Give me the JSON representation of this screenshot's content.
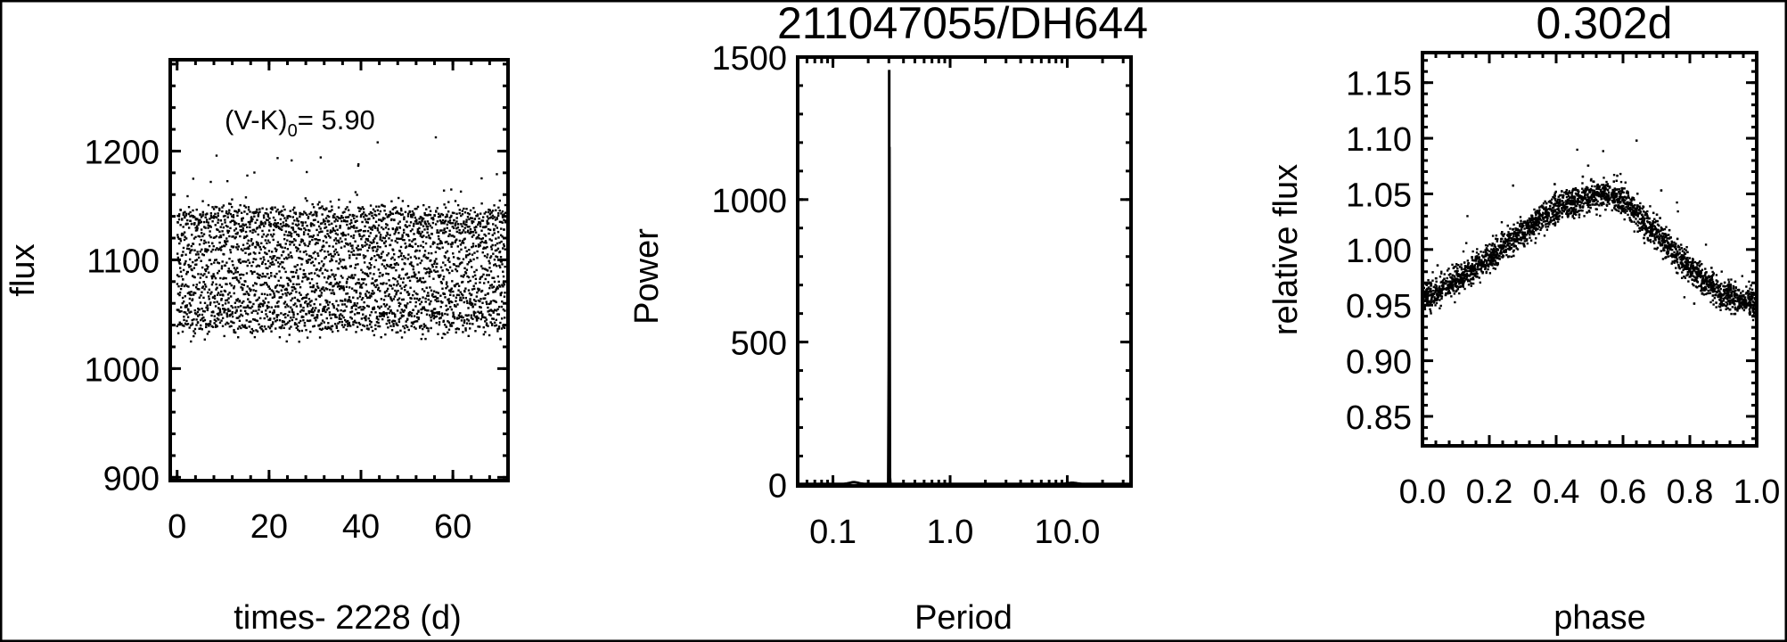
{
  "chart_data": [
    {
      "type": "scatter",
      "title": "",
      "xlabel": "times- 2228 (d)",
      "ylabel": "flux",
      "xlim": [
        -1.5,
        72
      ],
      "ylim": [
        897,
        1284
      ],
      "xticks": [
        0,
        20,
        40,
        60
      ],
      "xtick_labels": [
        "0",
        "20",
        "40",
        "60"
      ],
      "yticks": [
        900,
        1000,
        1100,
        1200
      ],
      "ytick_labels": [
        "900",
        "1000",
        "1100",
        "1200"
      ],
      "annotation": {
        "prefix": "(V-K)",
        "subscript": "0",
        "suffix": "= 5.90"
      },
      "time_range": [
        0,
        71.5
      ],
      "mean_flux": 1090,
      "band": [
        1040,
        1145
      ],
      "grid": false,
      "color": "#000000"
    },
    {
      "type": "line",
      "title": "211047055/DH644",
      "xlabel": "Period",
      "ylabel": "Power",
      "xscale": "log",
      "xlim": [
        0.05,
        35
      ],
      "ylim": [
        -5,
        1500
      ],
      "xticks": [
        0.1,
        1.0,
        10.0
      ],
      "xtick_labels": [
        "0.1",
        "1.0",
        "10.0"
      ],
      "yticks": [
        0,
        500,
        1000,
        1500
      ],
      "ytick_labels": [
        "0",
        "500",
        "1000",
        "1500"
      ],
      "peaks": [
        {
          "period": 0.302,
          "power": 1455
        },
        {
          "period": 0.151,
          "power": 6
        },
        {
          "period": 11.0,
          "power": 4
        }
      ],
      "baseline_power": 2,
      "grid": false,
      "color": "#000000"
    },
    {
      "type": "scatter",
      "title": "0.302d",
      "xlabel": "phase",
      "ylabel": "relative flux",
      "xlim": [
        0.0,
        1.0
      ],
      "ylim": [
        0.8235,
        1.177
      ],
      "xticks": [
        0.0,
        0.2,
        0.4,
        0.6,
        0.8,
        1.0
      ],
      "xtick_labels": [
        "0.0",
        "0.2",
        "0.4",
        "0.6",
        "0.8",
        "1.0"
      ],
      "yticks": [
        0.85,
        0.9,
        0.95,
        1.0,
        1.05,
        1.1,
        1.15
      ],
      "ytick_labels": [
        "0.85",
        "0.90",
        "0.95",
        "1.00",
        "1.05",
        "1.10",
        "1.15"
      ],
      "binned_curve": {
        "phase": [
          0.0,
          0.1,
          0.2,
          0.3,
          0.4,
          0.5,
          0.55,
          0.6,
          0.7,
          0.8,
          0.9,
          1.0
        ],
        "relative_flux": [
          0.955,
          0.972,
          0.993,
          1.016,
          1.036,
          1.047,
          1.049,
          1.044,
          1.015,
          0.983,
          0.958,
          0.952
        ]
      },
      "period_days": 0.302,
      "grid": false,
      "color": "#000000"
    }
  ]
}
